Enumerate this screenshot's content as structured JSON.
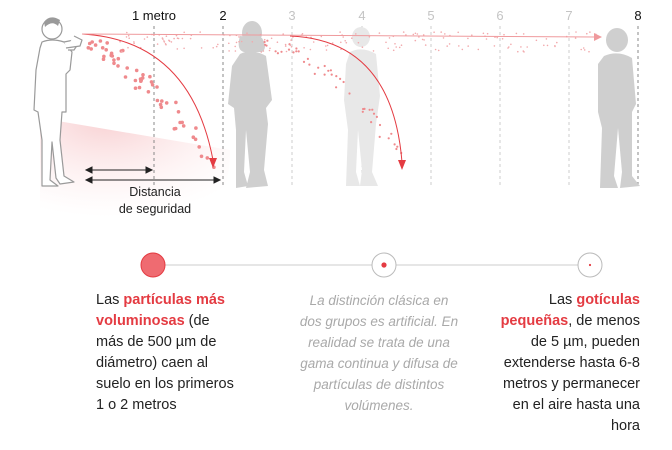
{
  "distance_axis": {
    "labels": [
      "1 metro",
      "2",
      "3",
      "4",
      "5",
      "6",
      "7",
      "8"
    ],
    "highlighted": [
      true,
      true,
      false,
      false,
      false,
      false,
      false,
      true
    ]
  },
  "safety_label": {
    "line1": "Distancia",
    "line2": "de seguridad"
  },
  "left_text": {
    "pre": "Las ",
    "highlight": "partículas más voluminosas",
    "rest": " (de más de 500 µm de diámetro) caen al suelo en los primeros 1 o 2 metros"
  },
  "middle_text": "La distinción clásica en dos grupos es artificial. En realidad se trata de una gama continua y difusa de partículas de distintos volúmenes.",
  "right_text": {
    "pre": "Las ",
    "highlight": "gotículas pequeñas",
    "rest": ", de menos de 5 µm, pueden extenderse hasta 6-8 metros y permanecer en el aire hasta una hora"
  },
  "colors": {
    "accent": "#e43b42",
    "dots": "#ef8a8d",
    "figure_dark": "#cfcfcf",
    "figure_light": "#e8e8e8",
    "line": "#cccccc"
  }
}
